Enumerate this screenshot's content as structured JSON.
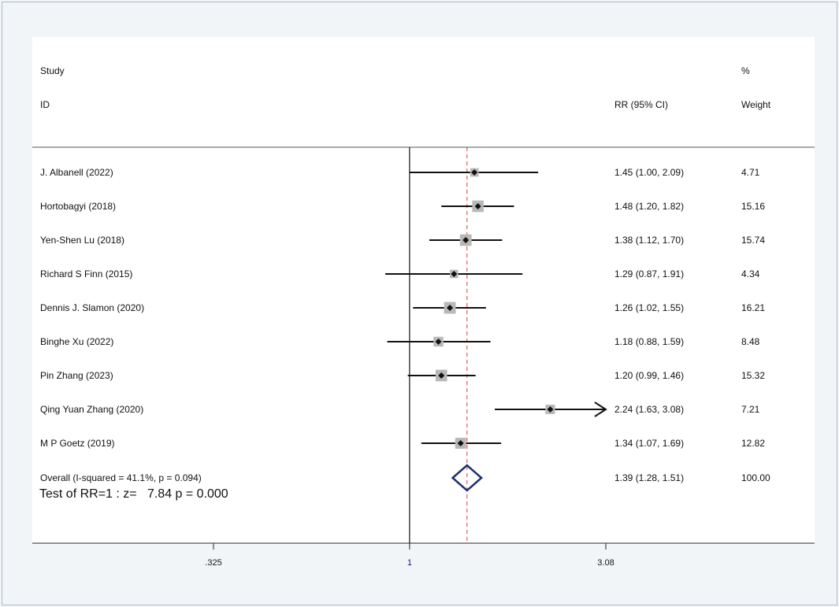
{
  "chart_data": {
    "type": "forest",
    "scale": "log",
    "headers": {
      "study_line1": "Study",
      "study_line2": "ID",
      "effect": "RR (95% CI)",
      "weight_line1": "%",
      "weight_line2": "Weight"
    },
    "x_ticks": [
      {
        "value": 0.325,
        "label": ".325"
      },
      {
        "value": 1,
        "label": "1"
      },
      {
        "value": 3.08,
        "label": "3.08"
      }
    ],
    "xlim": [
      0.325,
      3.08
    ],
    "null_line": 1,
    "studies": [
      {
        "name": "J. Albanell (2022)",
        "rr": 1.45,
        "lo": 1.0,
        "hi": 2.09,
        "effect_text": "1.45 (1.00, 2.09)",
        "weight_text": "4.71",
        "weight": 4.71
      },
      {
        "name": "Hortobagyi (2018)",
        "rr": 1.48,
        "lo": 1.2,
        "hi": 1.82,
        "effect_text": "1.48 (1.20, 1.82)",
        "weight_text": "15.16",
        "weight": 15.16
      },
      {
        "name": "Yen-Shen Lu (2018)",
        "rr": 1.38,
        "lo": 1.12,
        "hi": 1.7,
        "effect_text": "1.38 (1.12, 1.70)",
        "weight_text": "15.74",
        "weight": 15.74
      },
      {
        "name": "Richard S Finn (2015)",
        "rr": 1.29,
        "lo": 0.87,
        "hi": 1.91,
        "effect_text": "1.29 (0.87, 1.91)",
        "weight_text": "4.34",
        "weight": 4.34
      },
      {
        "name": "Dennis J. Slamon (2020)",
        "rr": 1.26,
        "lo": 1.02,
        "hi": 1.55,
        "effect_text": "1.26 (1.02, 1.55)",
        "weight_text": "16.21",
        "weight": 16.21
      },
      {
        "name": "Binghe Xu (2022)",
        "rr": 1.18,
        "lo": 0.88,
        "hi": 1.59,
        "effect_text": "1.18 (0.88, 1.59)",
        "weight_text": "8.48",
        "weight": 8.48
      },
      {
        "name": "Pin Zhang (2023)",
        "rr": 1.2,
        "lo": 0.99,
        "hi": 1.46,
        "effect_text": "1.20 (0.99, 1.46)",
        "weight_text": "15.32",
        "weight": 15.32
      },
      {
        "name": "Qing Yuan Zhang (2020)",
        "rr": 2.24,
        "lo": 1.63,
        "hi": 3.08,
        "effect_text": "2.24 (1.63, 3.08)",
        "weight_text": "7.21",
        "weight": 7.21,
        "arrow_right": true
      },
      {
        "name": "M P Goetz (2019)",
        "rr": 1.34,
        "lo": 1.07,
        "hi": 1.69,
        "effect_text": "1.34 (1.07, 1.69)",
        "weight_text": "12.82",
        "weight": 12.82
      }
    ],
    "overall": {
      "label": "Overall  (I-squared = 41.1%, p = 0.094)",
      "rr": 1.39,
      "lo": 1.28,
      "hi": 1.51,
      "effect_text": "1.39 (1.28, 1.51)",
      "weight_text": "100.00"
    },
    "test_text": "Test of RR=1 : z=   7.84 p = 0.000",
    "colors": {
      "background": "#f2f5f8",
      "plot_bg": "#ffffff",
      "weight_box": "#b8b8b8",
      "overall_diamond": "#1f2f74",
      "overall_line": "#d83a3a",
      "tick_label_null": "#1c1c6e"
    }
  }
}
